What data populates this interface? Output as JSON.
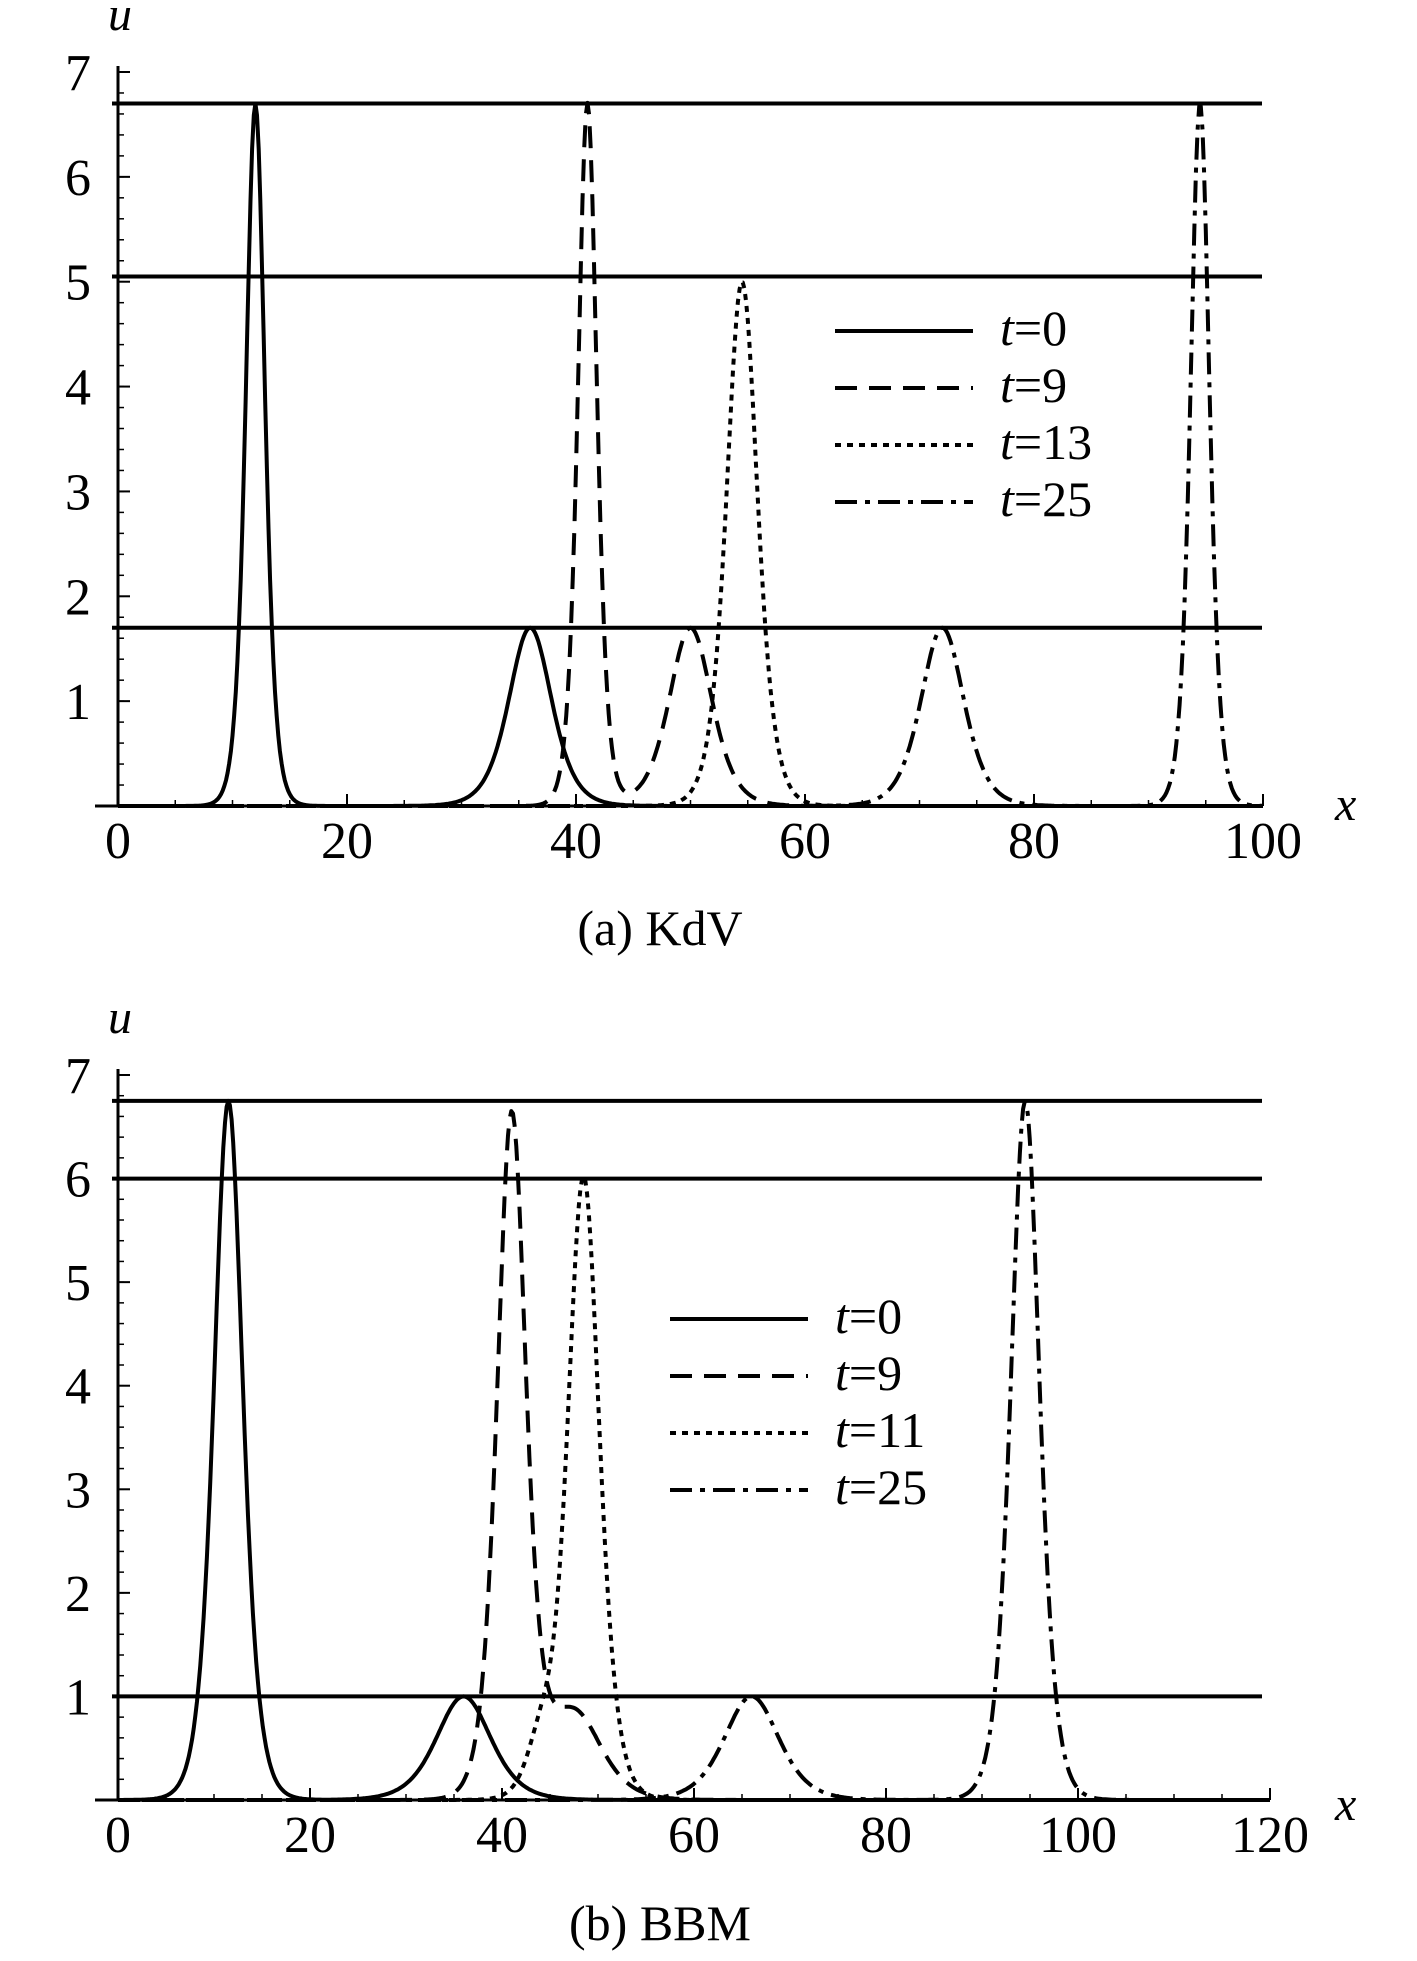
{
  "chart_data": [
    {
      "type": "line",
      "caption": "(a) KdV",
      "xlabel": "x",
      "ylabel": "u",
      "xlim": [
        0,
        100
      ],
      "ylim": [
        0,
        7
      ],
      "xticks": [
        "0",
        "20",
        "40",
        "60",
        "80",
        "100"
      ],
      "xtick_values": [
        0,
        20,
        40,
        60,
        80,
        100
      ],
      "yticks": [
        "1",
        "2",
        "3",
        "4",
        "5",
        "6",
        "7"
      ],
      "ytick_values": [
        1,
        2,
        3,
        4,
        5,
        6,
        7
      ],
      "hlines": [
        6.7,
        5.05,
        1.7
      ],
      "legend_position": "center-right",
      "series": [
        {
          "name": "t=0",
          "var": "t",
          "value": "0",
          "style": "solid",
          "solitons": [
            {
              "center": 12,
              "amp": 6.7,
              "width": 1.1
            },
            {
              "center": 36,
              "amp": 1.7,
              "width": 2.5
            }
          ]
        },
        {
          "name": "t=9",
          "var": "t",
          "value": "9",
          "style": "dashed",
          "solitons": [
            {
              "center": 41,
              "amp": 6.7,
              "width": 1.1
            },
            {
              "center": 50,
              "amp": 1.7,
              "width": 2.5
            }
          ]
        },
        {
          "name": "t=13",
          "var": "t",
          "value": "13",
          "style": "dotted",
          "solitons": [
            {
              "center": 54.5,
              "amp": 5.0,
              "width": 1.8
            }
          ]
        },
        {
          "name": "t=25",
          "var": "t",
          "value": "25",
          "style": "dashdot",
          "solitons": [
            {
              "center": 72,
              "amp": 1.7,
              "width": 2.5
            },
            {
              "center": 94.5,
              "amp": 6.7,
              "width": 1.1
            }
          ]
        }
      ]
    },
    {
      "type": "line",
      "caption": "(b) BBM",
      "xlabel": "x",
      "ylabel": "u",
      "xlim": [
        0,
        120
      ],
      "ylim": [
        0,
        7
      ],
      "xticks": [
        "0",
        "20",
        "40",
        "60",
        "80",
        "100",
        "120"
      ],
      "xtick_values": [
        0,
        20,
        40,
        60,
        80,
        100,
        120
      ],
      "yticks": [
        "1",
        "2",
        "3",
        "4",
        "5",
        "6",
        "7"
      ],
      "ytick_values": [
        1,
        2,
        3,
        4,
        5,
        6,
        7
      ],
      "hlines": [
        6.75,
        6.0,
        1.0
      ],
      "legend_position": "center",
      "series": [
        {
          "name": "t=0",
          "var": "t",
          "value": "0",
          "style": "solid",
          "solitons": [
            {
              "center": 11.5,
              "amp": 6.75,
              "width": 2.0
            },
            {
              "center": 36,
              "amp": 1.0,
              "width": 3.8
            }
          ]
        },
        {
          "name": "t=9",
          "var": "t",
          "value": "9",
          "style": "dashed",
          "solitons": [
            {
              "center": 41,
              "amp": 6.55,
              "width": 2.0
            },
            {
              "center": 47.5,
              "amp": 0.85,
              "width": 3.8
            }
          ]
        },
        {
          "name": "t=11",
          "var": "t",
          "value": "11",
          "style": "dotted",
          "solitons": [
            {
              "center": 48.5,
              "amp": 6.0,
              "width": 2.2
            },
            {
              "center": 44,
              "amp": 0.5,
              "width": 2.0
            }
          ]
        },
        {
          "name": "t=25",
          "var": "t",
          "value": "25",
          "style": "dashdot",
          "solitons": [
            {
              "center": 66,
              "amp": 1.0,
              "width": 3.8
            },
            {
              "center": 94.5,
              "amp": 6.75,
              "width": 2.0
            }
          ]
        }
      ]
    }
  ]
}
